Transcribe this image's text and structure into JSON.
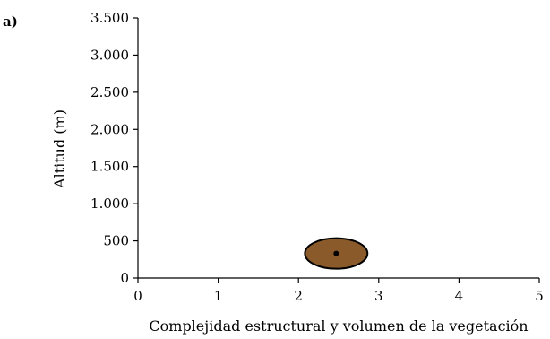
{
  "panel_label": "a)",
  "chart_data": {
    "type": "scatter",
    "title": "",
    "xlabel": "Complejidad estructural y volumen de la vegetación",
    "ylabel": "Altitud (m)",
    "xlim": [
      0,
      5
    ],
    "ylim": [
      0,
      3500
    ],
    "x_ticks": [
      0,
      1,
      2,
      3,
      4,
      5
    ],
    "x_tick_labels": [
      "0",
      "1",
      "2",
      "3",
      "4",
      "5"
    ],
    "y_ticks": [
      0,
      500,
      1000,
      1500,
      2000,
      2500,
      3000,
      3500
    ],
    "y_tick_labels": [
      "0",
      "500",
      "1.000",
      "1.500",
      "2.000",
      "2.500",
      "3.000",
      "3.500"
    ],
    "grid": false,
    "ellipses": [
      {
        "center_x": 2.47,
        "center_y": 330,
        "radius_x": 0.39,
        "radius_y": 205,
        "fill": "#8B5A2B",
        "stroke": "#000000"
      }
    ],
    "points": [
      {
        "x": 2.47,
        "y": 330,
        "color": "#000000"
      }
    ]
  }
}
